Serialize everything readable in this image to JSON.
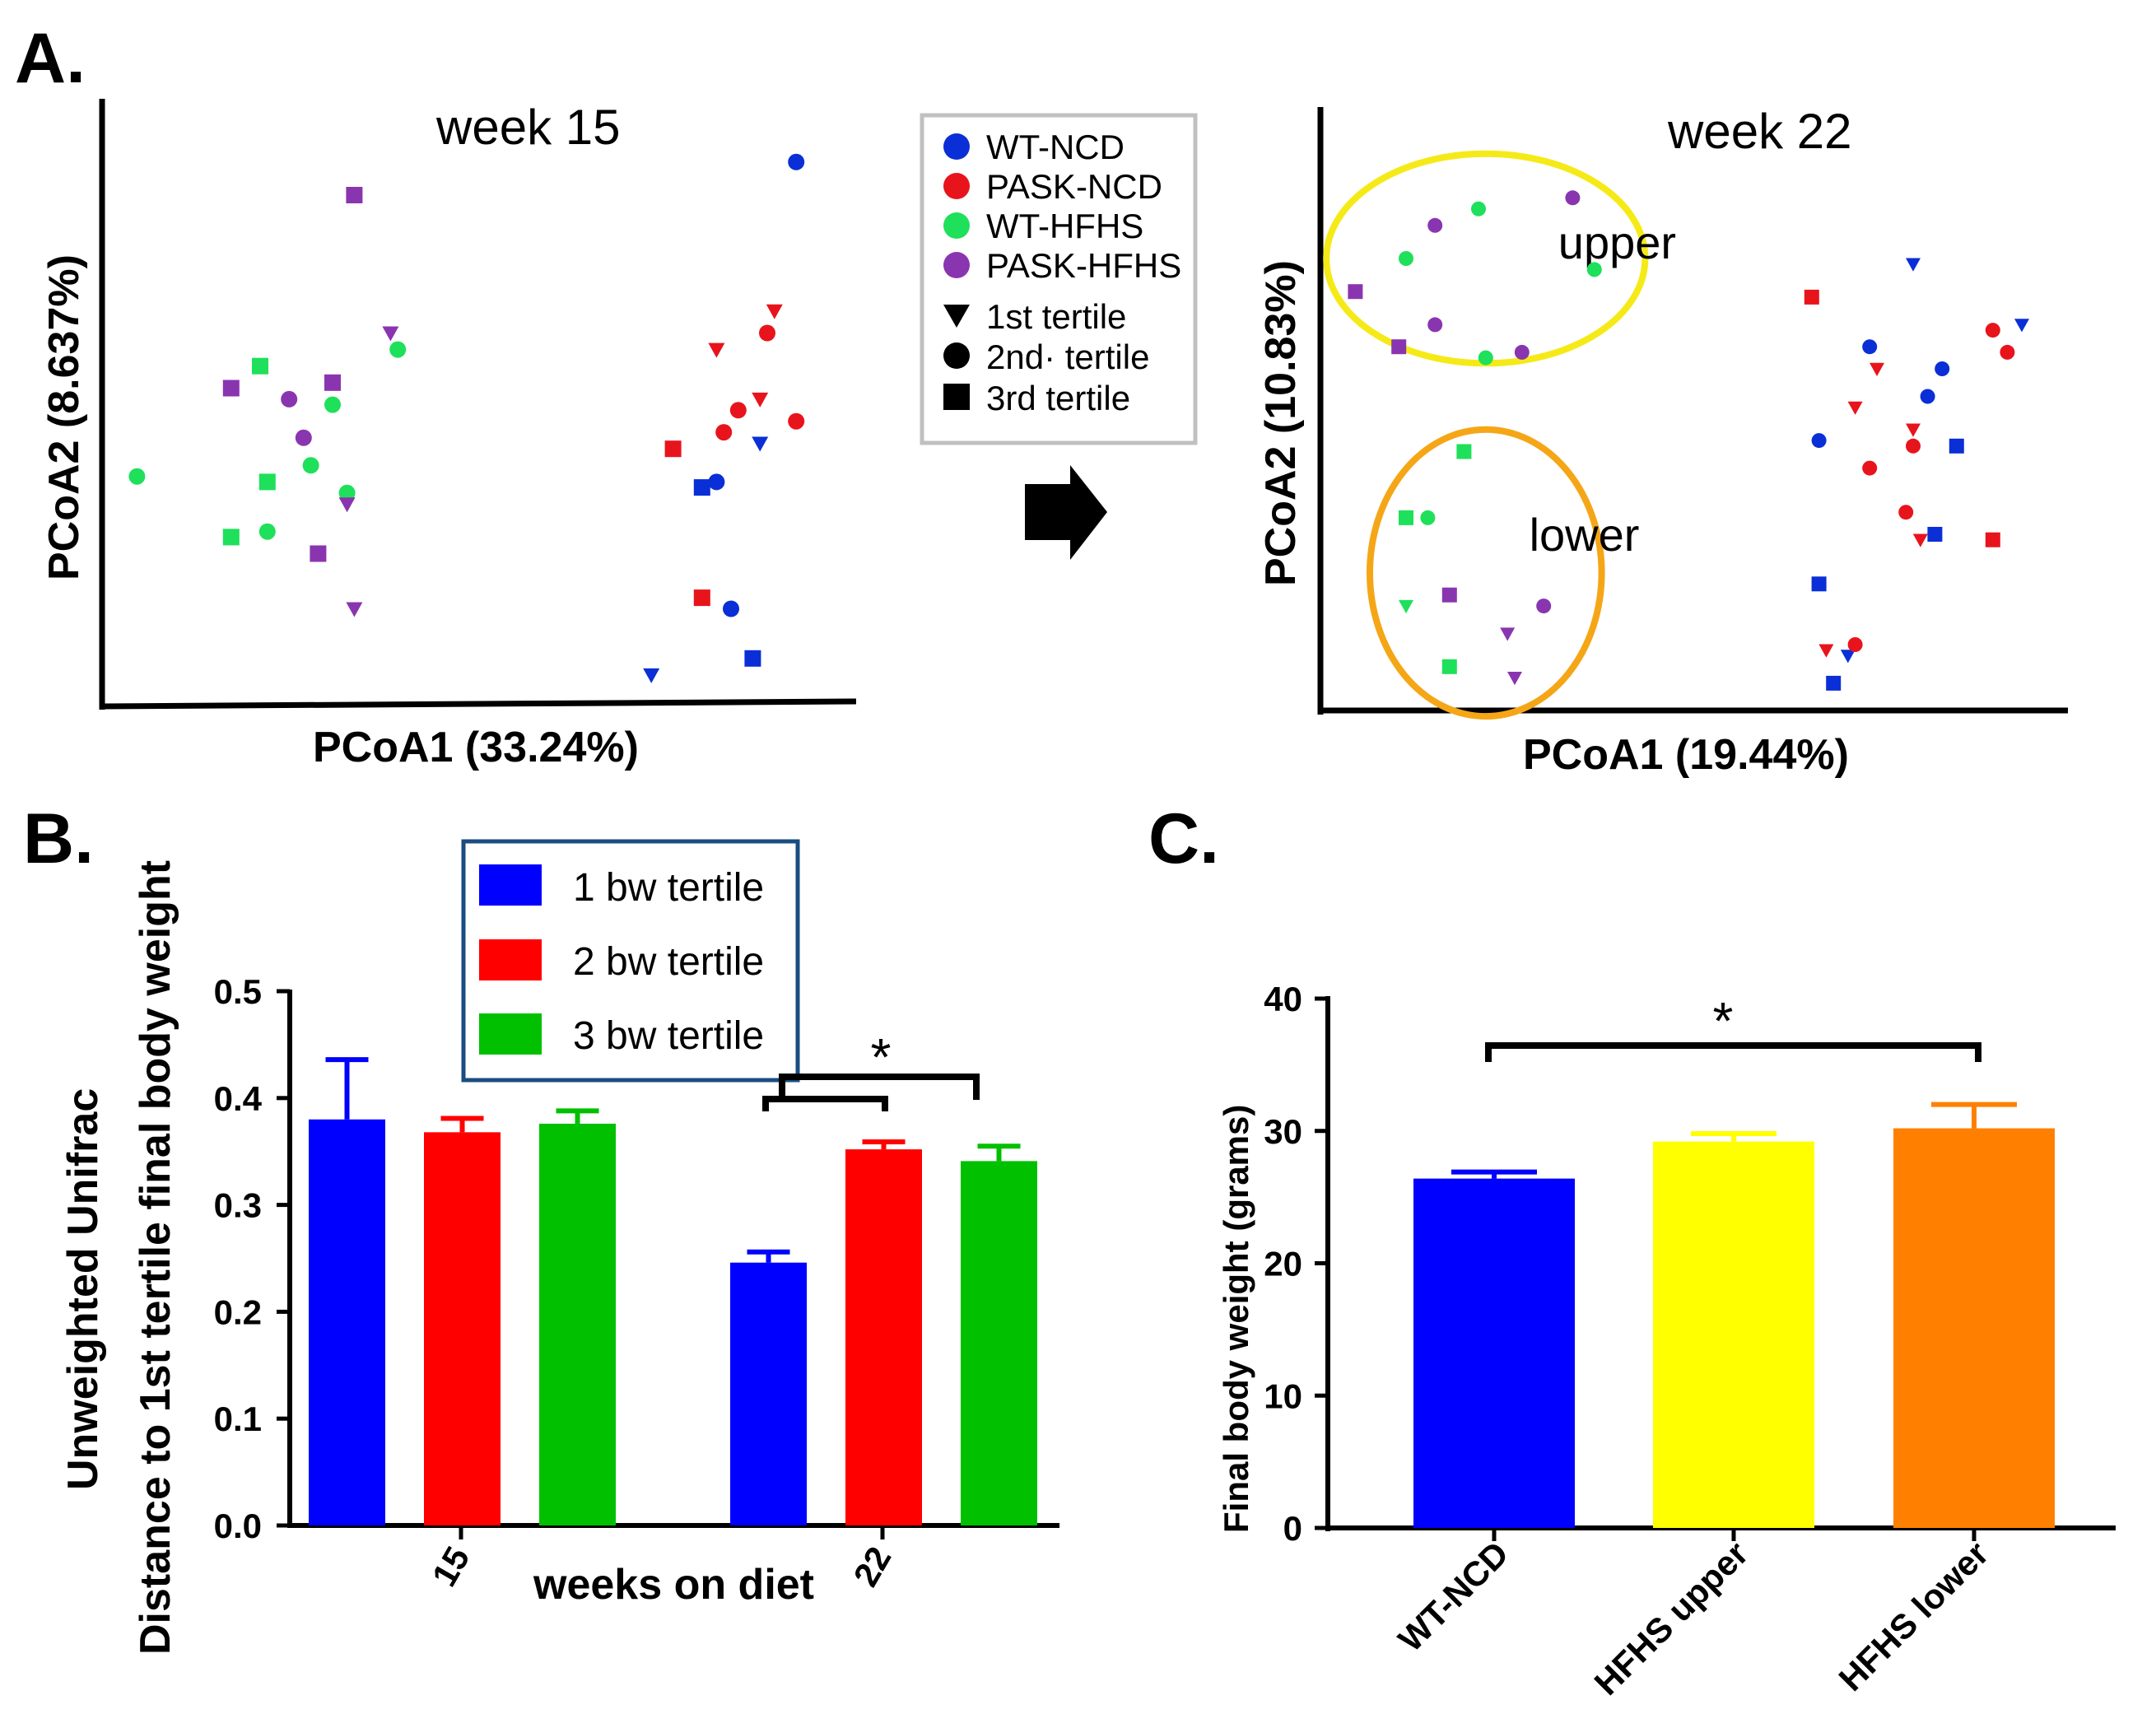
{
  "panels": {
    "a": "A.",
    "b": "B.",
    "c": "C."
  },
  "colors": {
    "wt_ncd": "#0a2fd6",
    "pask_ncd": "#e8141c",
    "wt_hfhs": "#1ee05a",
    "pask_hfhs": "#8a35b0",
    "blue_bar": "#0000ff",
    "red_bar": "#ff0000",
    "green_bar": "#00c000",
    "yellow_bar": "#ffff00",
    "orange_bar": "#ff8000",
    "yellow_ellipse": "#f5ea18",
    "orange_ellipse": "#f5a617"
  },
  "chart_data": [
    {
      "id": "pcoa_week15",
      "type": "scatter",
      "title": "week 15",
      "xlabel": "PCoA1 (33.24%)",
      "ylabel": "PCoA2 (8.637%)",
      "xlim": [
        0,
        100
      ],
      "ylim": [
        0,
        100
      ],
      "points": [
        {
          "g": "wt_ncd",
          "m": "circle",
          "x": 94,
          "y": 96
        },
        {
          "g": "pask_ncd",
          "m": "triangle",
          "x": 91,
          "y": 69
        },
        {
          "g": "pask_ncd",
          "m": "circle",
          "x": 90,
          "y": 65
        },
        {
          "g": "pask_ncd",
          "m": "triangle",
          "x": 83,
          "y": 62
        },
        {
          "g": "pask_ncd",
          "m": "triangle",
          "x": 89,
          "y": 53
        },
        {
          "g": "pask_ncd",
          "m": "circle",
          "x": 86,
          "y": 51
        },
        {
          "g": "pask_ncd",
          "m": "circle",
          "x": 94,
          "y": 49
        },
        {
          "g": "pask_ncd",
          "m": "circle",
          "x": 84,
          "y": 47
        },
        {
          "g": "wt_ncd",
          "m": "triangle",
          "x": 89,
          "y": 45
        },
        {
          "g": "pask_ncd",
          "m": "square",
          "x": 77,
          "y": 44
        },
        {
          "g": "wt_ncd",
          "m": "circle",
          "x": 83,
          "y": 38
        },
        {
          "g": "wt_ncd",
          "m": "square",
          "x": 81,
          "y": 37
        },
        {
          "g": "pask_ncd",
          "m": "square",
          "x": 81,
          "y": 17
        },
        {
          "g": "wt_ncd",
          "m": "circle",
          "x": 85,
          "y": 15
        },
        {
          "g": "wt_ncd",
          "m": "square",
          "x": 88,
          "y": 6
        },
        {
          "g": "wt_ncd",
          "m": "triangle",
          "x": 74,
          "y": 3
        },
        {
          "g": "pask_hfhs",
          "m": "square",
          "x": 33,
          "y": 90
        },
        {
          "g": "pask_hfhs",
          "m": "triangle",
          "x": 38,
          "y": 65
        },
        {
          "g": "wt_hfhs",
          "m": "circle",
          "x": 39,
          "y": 62
        },
        {
          "g": "wt_hfhs",
          "m": "square",
          "x": 20,
          "y": 59
        },
        {
          "g": "pask_hfhs",
          "m": "square",
          "x": 30,
          "y": 56
        },
        {
          "g": "pask_hfhs",
          "m": "square",
          "x": 16,
          "y": 55
        },
        {
          "g": "pask_hfhs",
          "m": "circle",
          "x": 24,
          "y": 53
        },
        {
          "g": "wt_hfhs",
          "m": "circle",
          "x": 30,
          "y": 52
        },
        {
          "g": "pask_hfhs",
          "m": "circle",
          "x": 26,
          "y": 46
        },
        {
          "g": "wt_hfhs",
          "m": "circle",
          "x": 27,
          "y": 41
        },
        {
          "g": "wt_hfhs",
          "m": "circle",
          "x": 3,
          "y": 39
        },
        {
          "g": "wt_hfhs",
          "m": "square",
          "x": 21,
          "y": 38
        },
        {
          "g": "wt_hfhs",
          "m": "circle",
          "x": 32,
          "y": 36
        },
        {
          "g": "pask_hfhs",
          "m": "triangle",
          "x": 32,
          "y": 34
        },
        {
          "g": "wt_hfhs",
          "m": "circle",
          "x": 21,
          "y": 29
        },
        {
          "g": "wt_hfhs",
          "m": "square",
          "x": 16,
          "y": 28
        },
        {
          "g": "pask_hfhs",
          "m": "square",
          "x": 28,
          "y": 25
        },
        {
          "g": "pask_hfhs",
          "m": "triangle",
          "x": 33,
          "y": 15
        }
      ]
    },
    {
      "id": "pcoa_week22",
      "type": "scatter",
      "title": "week 22",
      "xlabel": "PCoA1 (19.44%)",
      "ylabel": "PCoA2 (10.83%)",
      "xlim": [
        0,
        100
      ],
      "ylim": [
        0,
        100
      ],
      "regions": [
        {
          "label": "upper",
          "color": "yellow_ellipse",
          "cx": 21,
          "cy": 80,
          "rx": 22,
          "ry": 19
        },
        {
          "label": "lower",
          "color": "orange_ellipse",
          "cx": 21,
          "cy": 23,
          "rx": 16,
          "ry": 26
        }
      ],
      "points": [
        {
          "g": "pask_hfhs",
          "m": "circle",
          "x": 33,
          "y": 91
        },
        {
          "g": "wt_hfhs",
          "m": "circle",
          "x": 20,
          "y": 89
        },
        {
          "g": "pask_hfhs",
          "m": "circle",
          "x": 14,
          "y": 86
        },
        {
          "g": "wt_hfhs",
          "m": "circle",
          "x": 10,
          "y": 80
        },
        {
          "g": "wt_hfhs",
          "m": "circle",
          "x": 36,
          "y": 78
        },
        {
          "g": "pask_hfhs",
          "m": "square",
          "x": 3,
          "y": 74
        },
        {
          "g": "pask_hfhs",
          "m": "circle",
          "x": 14,
          "y": 68
        },
        {
          "g": "pask_hfhs",
          "m": "square",
          "x": 9,
          "y": 64
        },
        {
          "g": "pask_hfhs",
          "m": "circle",
          "x": 26,
          "y": 63
        },
        {
          "g": "wt_hfhs",
          "m": "circle",
          "x": 21,
          "y": 62
        },
        {
          "g": "wt_hfhs",
          "m": "square",
          "x": 18,
          "y": 45
        },
        {
          "g": "wt_hfhs",
          "m": "square",
          "x": 10,
          "y": 33
        },
        {
          "g": "wt_hfhs",
          "m": "circle",
          "x": 13,
          "y": 33
        },
        {
          "g": "pask_hfhs",
          "m": "square",
          "x": 16,
          "y": 19
        },
        {
          "g": "pask_hfhs",
          "m": "circle",
          "x": 29,
          "y": 17
        },
        {
          "g": "wt_hfhs",
          "m": "triangle",
          "x": 10,
          "y": 17
        },
        {
          "g": "pask_hfhs",
          "m": "triangle",
          "x": 24,
          "y": 12
        },
        {
          "g": "wt_hfhs",
          "m": "square",
          "x": 16,
          "y": 6
        },
        {
          "g": "pask_hfhs",
          "m": "triangle",
          "x": 25,
          "y": 4
        },
        {
          "g": "wt_ncd",
          "m": "triangle",
          "x": 80,
          "y": 79
        },
        {
          "g": "pask_ncd",
          "m": "square",
          "x": 66,
          "y": 73
        },
        {
          "g": "wt_ncd",
          "m": "triangle",
          "x": 95,
          "y": 68
        },
        {
          "g": "pask_ncd",
          "m": "circle",
          "x": 91,
          "y": 67
        },
        {
          "g": "wt_ncd",
          "m": "circle",
          "x": 74,
          "y": 64
        },
        {
          "g": "pask_ncd",
          "m": "circle",
          "x": 93,
          "y": 63
        },
        {
          "g": "pask_ncd",
          "m": "triangle",
          "x": 75,
          "y": 60
        },
        {
          "g": "wt_ncd",
          "m": "circle",
          "x": 84,
          "y": 60
        },
        {
          "g": "wt_ncd",
          "m": "circle",
          "x": 82,
          "y": 55
        },
        {
          "g": "pask_ncd",
          "m": "triangle",
          "x": 72,
          "y": 53
        },
        {
          "g": "pask_ncd",
          "m": "triangle",
          "x": 80,
          "y": 49
        },
        {
          "g": "wt_ncd",
          "m": "circle",
          "x": 67,
          "y": 47
        },
        {
          "g": "pask_ncd",
          "m": "circle",
          "x": 80,
          "y": 46
        },
        {
          "g": "wt_ncd",
          "m": "square",
          "x": 86,
          "y": 46
        },
        {
          "g": "pask_ncd",
          "m": "circle",
          "x": 74,
          "y": 42
        },
        {
          "g": "pask_ncd",
          "m": "circle",
          "x": 79,
          "y": 34
        },
        {
          "g": "pask_ncd",
          "m": "triangle",
          "x": 81,
          "y": 29
        },
        {
          "g": "wt_ncd",
          "m": "square",
          "x": 83,
          "y": 30
        },
        {
          "g": "pask_ncd",
          "m": "square",
          "x": 91,
          "y": 29
        },
        {
          "g": "wt_ncd",
          "m": "square",
          "x": 67,
          "y": 21
        },
        {
          "g": "pask_ncd",
          "m": "triangle",
          "x": 68,
          "y": 9
        },
        {
          "g": "wt_ncd",
          "m": "triangle",
          "x": 71,
          "y": 8
        },
        {
          "g": "pask_ncd",
          "m": "circle",
          "x": 72,
          "y": 10
        },
        {
          "g": "wt_ncd",
          "m": "square",
          "x": 69,
          "y": 3
        }
      ]
    },
    {
      "id": "unifrac_bars",
      "type": "bar",
      "ylabel_main": "Unweighted Unifrac",
      "ylabel_sub": "Distance to 1st tertile final body weight",
      "xlabel": "weeks on diet",
      "categories": [
        "15",
        "22"
      ],
      "ylim": [
        0,
        0.5
      ],
      "yticks": [
        "0.0",
        "0.1",
        "0.2",
        "0.3",
        "0.4",
        "0.5"
      ],
      "series": [
        {
          "name": "1 bw tertile",
          "color": "blue_bar",
          "values": [
            0.38,
            0.246
          ],
          "errors": [
            0.056,
            0.01
          ]
        },
        {
          "name": "2 bw tertile",
          "color": "red_bar",
          "values": [
            0.368,
            0.352
          ],
          "errors": [
            0.013,
            0.007
          ]
        },
        {
          "name": "3 bw tertile",
          "color": "green_bar",
          "values": [
            0.376,
            0.341
          ],
          "errors": [
            0.012,
            0.014
          ]
        }
      ],
      "significance": "*"
    },
    {
      "id": "final_body_weight",
      "type": "bar",
      "ylabel": "Final body weight (grams)",
      "categories": [
        "WT-NCD",
        "HFHS upper",
        "HFHS lower"
      ],
      "ylim": [
        0,
        40
      ],
      "yticks": [
        "0",
        "10",
        "20",
        "30",
        "40"
      ],
      "values": [
        26.4,
        29.2,
        30.2
      ],
      "errors": [
        0.5,
        0.6,
        1.8
      ],
      "colors": [
        "blue_bar",
        "yellow_bar",
        "orange_bar"
      ],
      "significance": "*"
    }
  ],
  "legend": {
    "groups": [
      {
        "label": "WT-NCD",
        "color": "wt_ncd"
      },
      {
        "label": "PASK-NCD",
        "color": "pask_ncd"
      },
      {
        "label": "WT-HFHS",
        "color": "wt_hfhs"
      },
      {
        "label": "PASK-HFHS",
        "color": "pask_hfhs"
      }
    ],
    "shapes": [
      {
        "label": "1st  tertile",
        "marker": "triangle"
      },
      {
        "label": "2nd· tertile",
        "marker": "circle"
      },
      {
        "label": "3rd tertile",
        "marker": "square"
      }
    ]
  }
}
